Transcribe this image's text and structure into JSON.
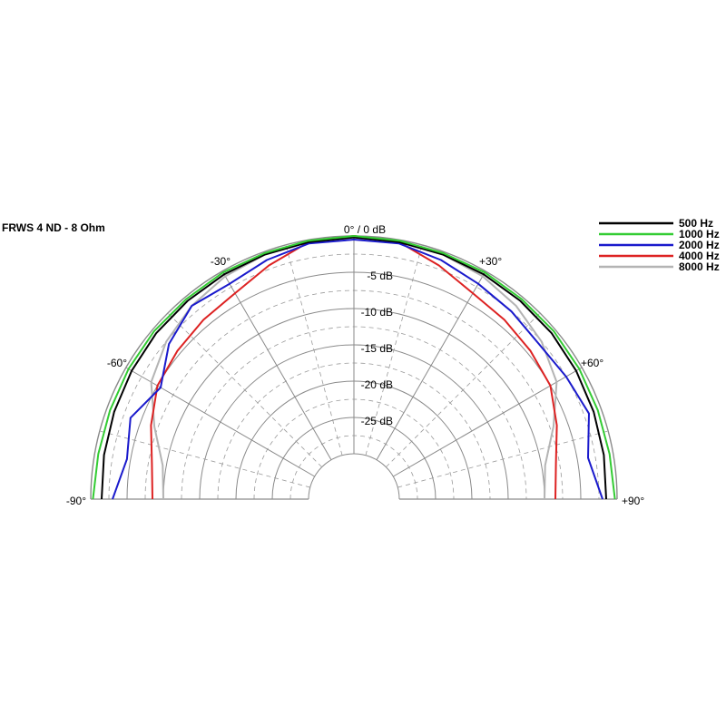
{
  "chart_data": {
    "type": "line",
    "subtype": "polar-half",
    "title": "FRWS 4 ND - 8 Ohm",
    "center_label": "0° / 0 dB",
    "angle_labels": [
      "-90°",
      "-60°",
      "-30°",
      "+30°",
      "+60°",
      "+90°"
    ],
    "db_labels": [
      "-5 dB",
      "-10 dB",
      "-15 dB",
      "-20 dB",
      "-25 dB"
    ],
    "angle_range": [
      -90,
      90
    ],
    "db_range": [
      -30,
      0
    ],
    "grid": true,
    "legend_position": "top-right",
    "angles": [
      -90,
      -80,
      -70,
      -60,
      -50,
      -40,
      -30,
      -20,
      -10,
      0,
      10,
      20,
      30,
      40,
      50,
      60,
      70,
      80,
      90
    ],
    "series": [
      {
        "name": "500 Hz",
        "color": "#000000",
        "values": [
          -1.5,
          -1.3,
          -1.1,
          -0.9,
          -0.7,
          -0.6,
          -0.5,
          -0.4,
          -0.3,
          -0.2,
          -0.3,
          -0.4,
          -0.5,
          -0.6,
          -0.7,
          -0.9,
          -1.1,
          -1.3,
          -1.5
        ]
      },
      {
        "name": "1000 Hz",
        "color": "#33cc33",
        "values": [
          -0.3,
          -0.5,
          -0.5,
          -0.4,
          -0.3,
          -0.3,
          -0.2,
          -0.2,
          -0.1,
          0,
          -0.1,
          -0.2,
          -0.2,
          -0.3,
          -0.3,
          -0.4,
          -0.5,
          -0.5,
          -0.3
        ]
      },
      {
        "name": "2000 Hz",
        "color": "#1a1acc",
        "values": [
          -3.0,
          -4.5,
          -3.5,
          -5.5,
          -3.0,
          -1.5,
          -2.0,
          -1.2,
          -0.5,
          -0.5,
          -0.5,
          -1.2,
          -2.0,
          -2.5,
          -3.0,
          -2.5,
          -1.8,
          -3.5,
          -2.0
        ]
      },
      {
        "name": "4000 Hz",
        "color": "#dd2222",
        "values": [
          -8.5,
          -8.0,
          -6.5,
          -5.0,
          -4.5,
          -4.0,
          -3.5,
          -2.0,
          -0.3,
          0,
          -0.3,
          -2.0,
          -3.5,
          -4.0,
          -4.5,
          -5.0,
          -6.5,
          -8.0,
          -8.5
        ]
      },
      {
        "name": "8000 Hz",
        "color": "#b4b4b4",
        "values": [
          -10.0,
          -9.5,
          -7.0,
          -4.0,
          -2.5,
          -1.5,
          -0.8,
          -0.4,
          -0.2,
          0,
          -0.2,
          -0.4,
          -0.8,
          -1.5,
          -2.5,
          -4.0,
          -7.0,
          -9.5,
          -10.0
        ]
      }
    ]
  }
}
